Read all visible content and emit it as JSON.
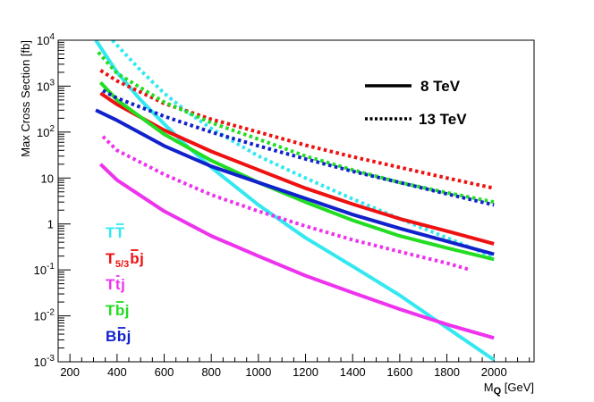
{
  "chart_data": {
    "type": "line",
    "title": "",
    "xlabel": "M",
    "xlabel_sub": "Q",
    "xlabel_unit": " [GeV]",
    "ylabel": "Max Cross Section [fb]",
    "xlim": [
      150,
      2170
    ],
    "ylim": [
      0.001,
      10000
    ],
    "yscale": "log",
    "x_ticks": [
      200,
      400,
      600,
      800,
      1000,
      1200,
      1400,
      1600,
      1800,
      2000
    ],
    "x_tick_labels": [
      "200",
      "400",
      "600",
      "800",
      "1000",
      "1200",
      "1400",
      "1600",
      "1800",
      "2000"
    ],
    "y_ticks": [
      {
        "value": 0.001,
        "type": "pow",
        "base": "10",
        "exp": "-3"
      },
      {
        "value": 0.01,
        "type": "pow",
        "base": "10",
        "exp": "-2"
      },
      {
        "value": 0.1,
        "type": "pow",
        "base": "10",
        "exp": "-1"
      },
      {
        "value": 1,
        "type": "plain",
        "text": "1"
      },
      {
        "value": 10,
        "type": "plain",
        "text": "10"
      },
      {
        "value": 100,
        "type": "pow",
        "base": "10",
        "exp": "2"
      },
      {
        "value": 1000,
        "type": "pow",
        "base": "10",
        "exp": "3"
      },
      {
        "value": 10000,
        "type": "pow",
        "base": "10",
        "exp": "4"
      }
    ],
    "style_legend": [
      {
        "label": "8 TeV",
        "dash": "solid"
      },
      {
        "label": "13 TeV",
        "dash": "dotted"
      }
    ],
    "process_labels": [
      {
        "id": "TT",
        "parts": [
          {
            "t": "T"
          },
          {
            "t": "T",
            "bar": true
          }
        ],
        "color": "#33e8f0"
      },
      {
        "id": "T53bj",
        "parts": [
          {
            "t": "T"
          },
          {
            "t": "5/3",
            "sub": true
          },
          {
            "t": "b",
            "bar": true
          },
          {
            "t": "j"
          }
        ],
        "color": "#ee1111"
      },
      {
        "id": "Ttj",
        "parts": [
          {
            "t": "T"
          },
          {
            "t": "t",
            "bar": true
          },
          {
            "t": "j"
          }
        ],
        "color": "#ee33ee"
      },
      {
        "id": "Tbj",
        "parts": [
          {
            "t": "T"
          },
          {
            "t": "b",
            "bar": true
          },
          {
            "t": "j"
          }
        ],
        "color": "#22dd22"
      },
      {
        "id": "Bbj",
        "parts": [
          {
            "t": "B"
          },
          {
            "t": "b",
            "bar": true
          },
          {
            "t": "j"
          }
        ],
        "color": "#1122cc"
      }
    ],
    "series": [
      {
        "name": "TT 8 TeV",
        "process": "TT",
        "energy": "8 TeV",
        "color": "#33e8f0",
        "dash": "solid",
        "x": [
          310,
          400,
          500,
          600,
          700,
          800,
          1000,
          1200,
          1400,
          1600,
          1800,
          2000
        ],
        "y": [
          10000,
          2000,
          500,
          150,
          48,
          17,
          2.6,
          0.5,
          0.12,
          0.028,
          0.0055,
          0.0011
        ]
      },
      {
        "name": "TT 13 TeV",
        "process": "TT",
        "energy": "13 TeV",
        "color": "#33e8f0",
        "dash": "dotted",
        "x": [
          380,
          500,
          600,
          700,
          800,
          1000,
          1200,
          1400,
          1600,
          1800,
          2000
        ],
        "y": [
          10000,
          2200,
          700,
          270,
          120,
          30,
          10,
          3.5,
          1.3,
          0.5,
          0.19
        ]
      },
      {
        "name": "T5/3bj 8 TeV",
        "process": "T53bj",
        "energy": "8 TeV",
        "color": "#ee1111",
        "dash": "solid",
        "x": [
          330,
          400,
          600,
          800,
          1000,
          1200,
          1400,
          1600,
          1800,
          2000
        ],
        "y": [
          700,
          400,
          110,
          38,
          15,
          6,
          2.7,
          1.3,
          0.7,
          0.37
        ]
      },
      {
        "name": "T5/3bj 13 TeV",
        "process": "T53bj",
        "energy": "13 TeV",
        "color": "#ee1111",
        "dash": "dotted",
        "x": [
          330,
          400,
          600,
          800,
          1000,
          1200,
          1400,
          1600,
          1800,
          2000
        ],
        "y": [
          2200,
          1300,
          420,
          190,
          100,
          52,
          29,
          17,
          10,
          6
        ]
      },
      {
        "name": "Ttj 8 TeV",
        "process": "Ttj",
        "energy": "8 TeV",
        "color": "#ee33ee",
        "dash": "solid",
        "x": [
          330,
          400,
          600,
          800,
          1000,
          1200,
          1400,
          1600,
          1800,
          2000
        ],
        "y": [
          20,
          9,
          1.9,
          0.55,
          0.2,
          0.075,
          0.032,
          0.014,
          0.0065,
          0.0033
        ]
      },
      {
        "name": "Ttj 13 TeV",
        "process": "Ttj",
        "energy": "13 TeV",
        "color": "#ee33ee",
        "dash": "dotted",
        "x": [
          340,
          400,
          600,
          800,
          1000,
          1200,
          1400,
          1600,
          1800,
          1900
        ],
        "y": [
          80,
          40,
          12,
          4.3,
          1.9,
          0.9,
          0.45,
          0.25,
          0.14,
          0.1
        ]
      },
      {
        "name": "Tbj 8 TeV",
        "process": "Tbj",
        "energy": "8 TeV",
        "color": "#22dd22",
        "dash": "solid",
        "x": [
          330,
          400,
          600,
          800,
          1000,
          1200,
          1400,
          1600,
          1800,
          2000
        ],
        "y": [
          1200,
          500,
          90,
          24,
          8,
          3,
          1.2,
          0.55,
          0.3,
          0.17
        ]
      },
      {
        "name": "Tbj 13 TeV",
        "process": "Tbj",
        "energy": "13 TeV",
        "color": "#22dd22",
        "dash": "dotted",
        "x": [
          320,
          400,
          600,
          800,
          1000,
          1200,
          1400,
          1600,
          1800,
          2000
        ],
        "y": [
          5500,
          1900,
          450,
          160,
          70,
          30,
          15,
          8,
          4.8,
          3
        ]
      },
      {
        "name": "Bbj 8 TeV",
        "process": "Bbj",
        "energy": "8 TeV",
        "color": "#1122cc",
        "dash": "solid",
        "x": [
          310,
          400,
          600,
          800,
          1000,
          1200,
          1400,
          1600,
          1800,
          2000
        ],
        "y": [
          300,
          180,
          50,
          18,
          8,
          3.6,
          1.6,
          0.8,
          0.42,
          0.22
        ]
      },
      {
        "name": "Bbj 13 TeV",
        "process": "Bbj",
        "energy": "13 TeV",
        "color": "#1122cc",
        "dash": "dotted",
        "x": [
          340,
          400,
          600,
          800,
          1000,
          1200,
          1400,
          1600,
          1800,
          2000
        ],
        "y": [
          800,
          550,
          220,
          100,
          50,
          26,
          14,
          8,
          4.5,
          2.6
        ]
      }
    ]
  }
}
